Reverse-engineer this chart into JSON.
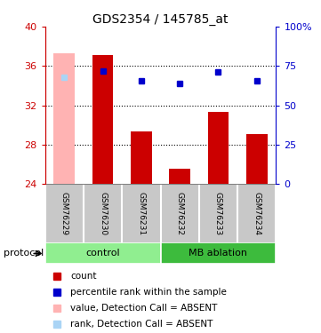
{
  "title": "GDS2354 / 145785_at",
  "categories": [
    "GSM76229",
    "GSM76230",
    "GSM76231",
    "GSM76232",
    "GSM76233",
    "GSM76234"
  ],
  "bar_values": [
    37.3,
    37.15,
    29.3,
    25.5,
    31.3,
    29.1
  ],
  "bar_colors": [
    "#ffb3b3",
    "#cc0000",
    "#cc0000",
    "#cc0000",
    "#cc0000",
    "#cc0000"
  ],
  "bar_baseline": 24,
  "rank_values": [
    34.85,
    35.5,
    34.45,
    34.2,
    35.4,
    34.45
  ],
  "rank_absent": [
    true,
    false,
    false,
    false,
    false,
    false
  ],
  "ylim_left": [
    24,
    40
  ],
  "ylim_right": [
    0,
    100
  ],
  "yticks_left": [
    24,
    28,
    32,
    36,
    40
  ],
  "yticks_right": [
    0,
    25,
    50,
    75,
    100
  ],
  "ytick_right_labels": [
    "0",
    "25",
    "50",
    "75",
    "100%"
  ],
  "protocol_groups": [
    {
      "label": "control",
      "start": 0,
      "end": 3,
      "color": "#90ee90"
    },
    {
      "label": "MB ablation",
      "start": 3,
      "end": 6,
      "color": "#3dbb3d"
    }
  ],
  "protocol_label": "protocol",
  "legend_items": [
    {
      "label": "count",
      "color": "#cc0000",
      "marker": "s"
    },
    {
      "label": "percentile rank within the sample",
      "color": "#0000cc",
      "marker": "s"
    },
    {
      "label": "value, Detection Call = ABSENT",
      "color": "#ffb3b3",
      "marker": "s"
    },
    {
      "label": "rank, Detection Call = ABSENT",
      "color": "#aad4f5",
      "marker": "s"
    }
  ],
  "left_axis_color": "#cc0000",
  "right_axis_color": "#0000cc",
  "bar_width": 0.55,
  "gridline_values": [
    28,
    32,
    36
  ],
  "xlabels_bg": "#c8c8c8",
  "border_color": "#808080"
}
